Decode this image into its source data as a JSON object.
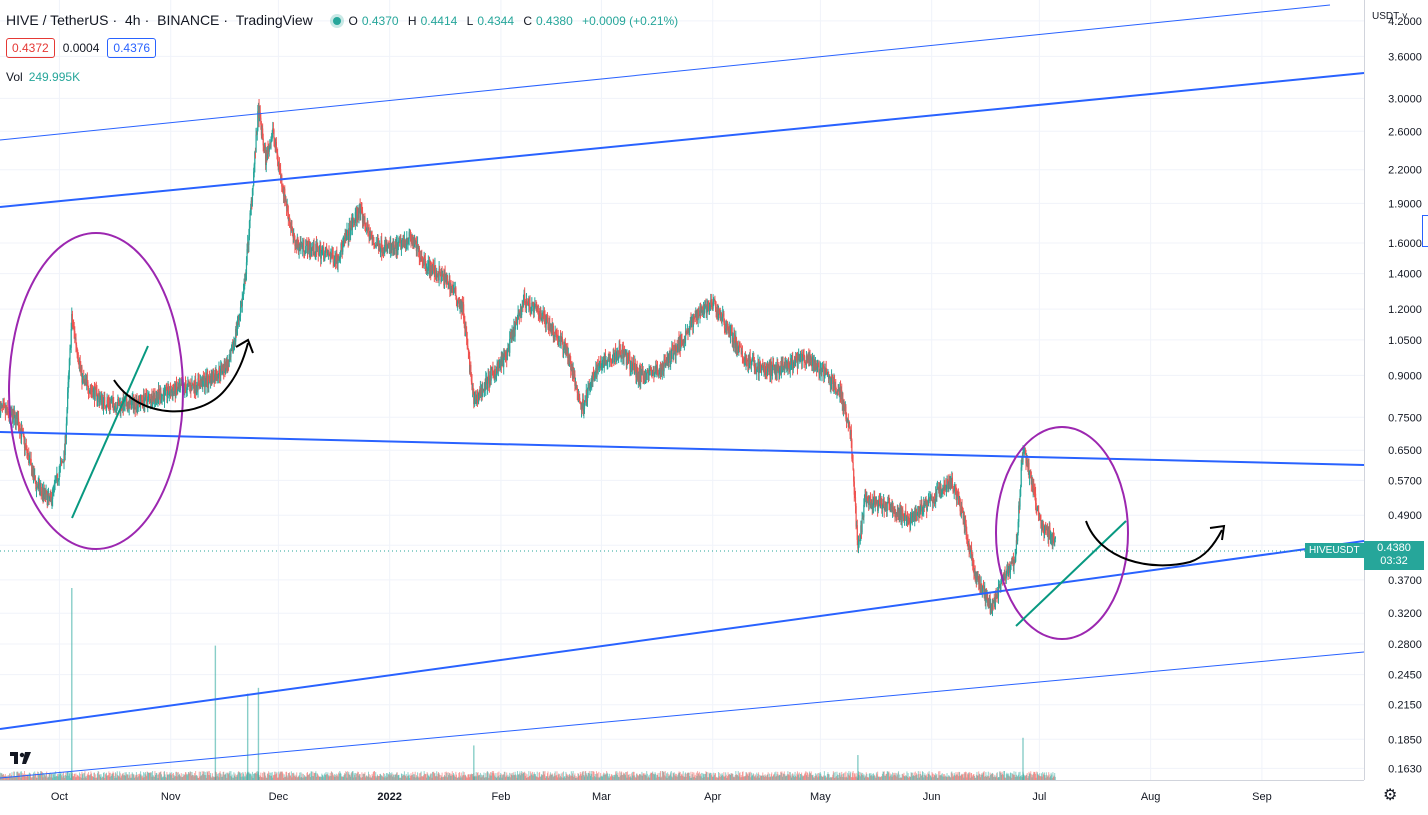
{
  "header": {
    "symbol": "HIVE / TetherUS",
    "interval": "4h",
    "exchange": "BINANCE",
    "platform": "TradingView",
    "separator": "·",
    "open_label": "O",
    "open": "0.4370",
    "high_label": "H",
    "high": "0.4414",
    "low_label": "L",
    "low": "0.4344",
    "close_label": "C",
    "close": "0.4380",
    "change": "+0.0009 (+0.21%)",
    "bid": "0.4372",
    "spread": "0.0004",
    "ask": "0.4376",
    "volume_label": "Vol",
    "volume": "249.995K"
  },
  "axis": {
    "currency": "USDT ˅",
    "current_price": "0.4380",
    "countdown": "03:32",
    "symbol_tag": "HIVEUSDT",
    "gear_icon": "⚙"
  },
  "colors": {
    "up": "#26a69a",
    "down": "#ef5350",
    "trendline": "#2962ff",
    "circle": "#9c27b0",
    "arrow": "#000000",
    "teal_line": "#089981"
  },
  "chart_data": {
    "type": "candlestick",
    "y_scale": "log",
    "ylim": [
      0.155,
      4.6
    ],
    "y_ticks": [
      4.2,
      3.6,
      3.0,
      2.6,
      2.2,
      1.9,
      1.6,
      1.4,
      1.2,
      1.05,
      0.9,
      0.75,
      0.65,
      0.57,
      0.49,
      0.43,
      0.37,
      0.32,
      0.28,
      0.245,
      0.215,
      0.185,
      0.163
    ],
    "y_tick_labels": [
      "4.2000",
      "3.6000",
      "3.0000",
      "2.6000",
      "2.2000",
      "1.9000",
      "1.6000",
      "1.4000",
      "1.2000",
      "1.0500",
      "0.9000",
      "0.7500",
      "0.6500",
      "0.5700",
      "0.4900",
      "0.4300",
      "0.3700",
      "0.3200",
      "0.2800",
      "0.2450",
      "0.2150",
      "0.1850",
      "0.1630"
    ],
    "x_labels": [
      "Oct",
      "Nov",
      "Dec",
      "2022",
      "Feb",
      "Mar",
      "Apr",
      "May",
      "Jun",
      "Jul",
      "Aug",
      "Sep"
    ],
    "x_start": "2021-09-15",
    "x_end": "2022-09-30",
    "price_path": [
      [
        "2021-09-15",
        0.78
      ],
      [
        "2021-09-20",
        0.74
      ],
      [
        "2021-09-25",
        0.56
      ],
      [
        "2021-09-29",
        0.52
      ],
      [
        "2021-10-03",
        0.64
      ],
      [
        "2021-10-05",
        1.15
      ],
      [
        "2021-10-08",
        0.88
      ],
      [
        "2021-10-14",
        0.8
      ],
      [
        "2021-10-20",
        0.79
      ],
      [
        "2021-10-28",
        0.82
      ],
      [
        "2021-11-05",
        0.85
      ],
      [
        "2021-11-12",
        0.88
      ],
      [
        "2021-11-18",
        0.95
      ],
      [
        "2021-11-22",
        1.3
      ],
      [
        "2021-11-24",
        1.9
      ],
      [
        "2021-11-26",
        2.85
      ],
      [
        "2021-11-28",
        2.3
      ],
      [
        "2021-11-30",
        2.6
      ],
      [
        "2021-12-03",
        2.0
      ],
      [
        "2021-12-06",
        1.6
      ],
      [
        "2021-12-12",
        1.55
      ],
      [
        "2021-12-18",
        1.5
      ],
      [
        "2021-12-24",
        1.85
      ],
      [
        "2021-12-28",
        1.6
      ],
      [
        "2022-01-03",
        1.55
      ],
      [
        "2022-01-07",
        1.65
      ],
      [
        "2022-01-12",
        1.45
      ],
      [
        "2022-01-18",
        1.35
      ],
      [
        "2022-01-22",
        1.2
      ],
      [
        "2022-01-25",
        0.8
      ],
      [
        "2022-01-28",
        0.86
      ],
      [
        "2022-02-03",
        0.98
      ],
      [
        "2022-02-08",
        1.25
      ],
      [
        "2022-02-14",
        1.15
      ],
      [
        "2022-02-20",
        1.0
      ],
      [
        "2022-02-24",
        0.78
      ],
      [
        "2022-03-01",
        0.95
      ],
      [
        "2022-03-07",
        1.0
      ],
      [
        "2022-03-12",
        0.9
      ],
      [
        "2022-03-18",
        0.92
      ],
      [
        "2022-03-24",
        1.05
      ],
      [
        "2022-03-29",
        1.2
      ],
      [
        "2022-04-02",
        1.22
      ],
      [
        "2022-04-06",
        1.1
      ],
      [
        "2022-04-10",
        0.97
      ],
      [
        "2022-04-16",
        0.92
      ],
      [
        "2022-04-22",
        0.93
      ],
      [
        "2022-04-27",
        0.97
      ],
      [
        "2022-05-02",
        0.92
      ],
      [
        "2022-05-07",
        0.84
      ],
      [
        "2022-05-10",
        0.7
      ],
      [
        "2022-05-12",
        0.42
      ],
      [
        "2022-05-14",
        0.52
      ],
      [
        "2022-05-20",
        0.51
      ],
      [
        "2022-05-26",
        0.48
      ],
      [
        "2022-06-01",
        0.52
      ],
      [
        "2022-06-07",
        0.57
      ],
      [
        "2022-06-10",
        0.5
      ],
      [
        "2022-06-14",
        0.37
      ],
      [
        "2022-06-18",
        0.33
      ],
      [
        "2022-06-22",
        0.38
      ],
      [
        "2022-06-25",
        0.41
      ],
      [
        "2022-06-27",
        0.66
      ],
      [
        "2022-06-29",
        0.58
      ],
      [
        "2022-07-02",
        0.47
      ],
      [
        "2022-07-06",
        0.438
      ]
    ],
    "volume_spikes": [
      [
        "2021-10-05",
        1.0
      ],
      [
        "2021-11-14",
        0.7
      ],
      [
        "2021-11-23",
        0.45
      ],
      [
        "2021-11-26",
        0.48
      ],
      [
        "2022-01-25",
        0.18
      ],
      [
        "2022-05-12",
        0.13
      ],
      [
        "2022-06-27",
        0.22
      ]
    ]
  }
}
